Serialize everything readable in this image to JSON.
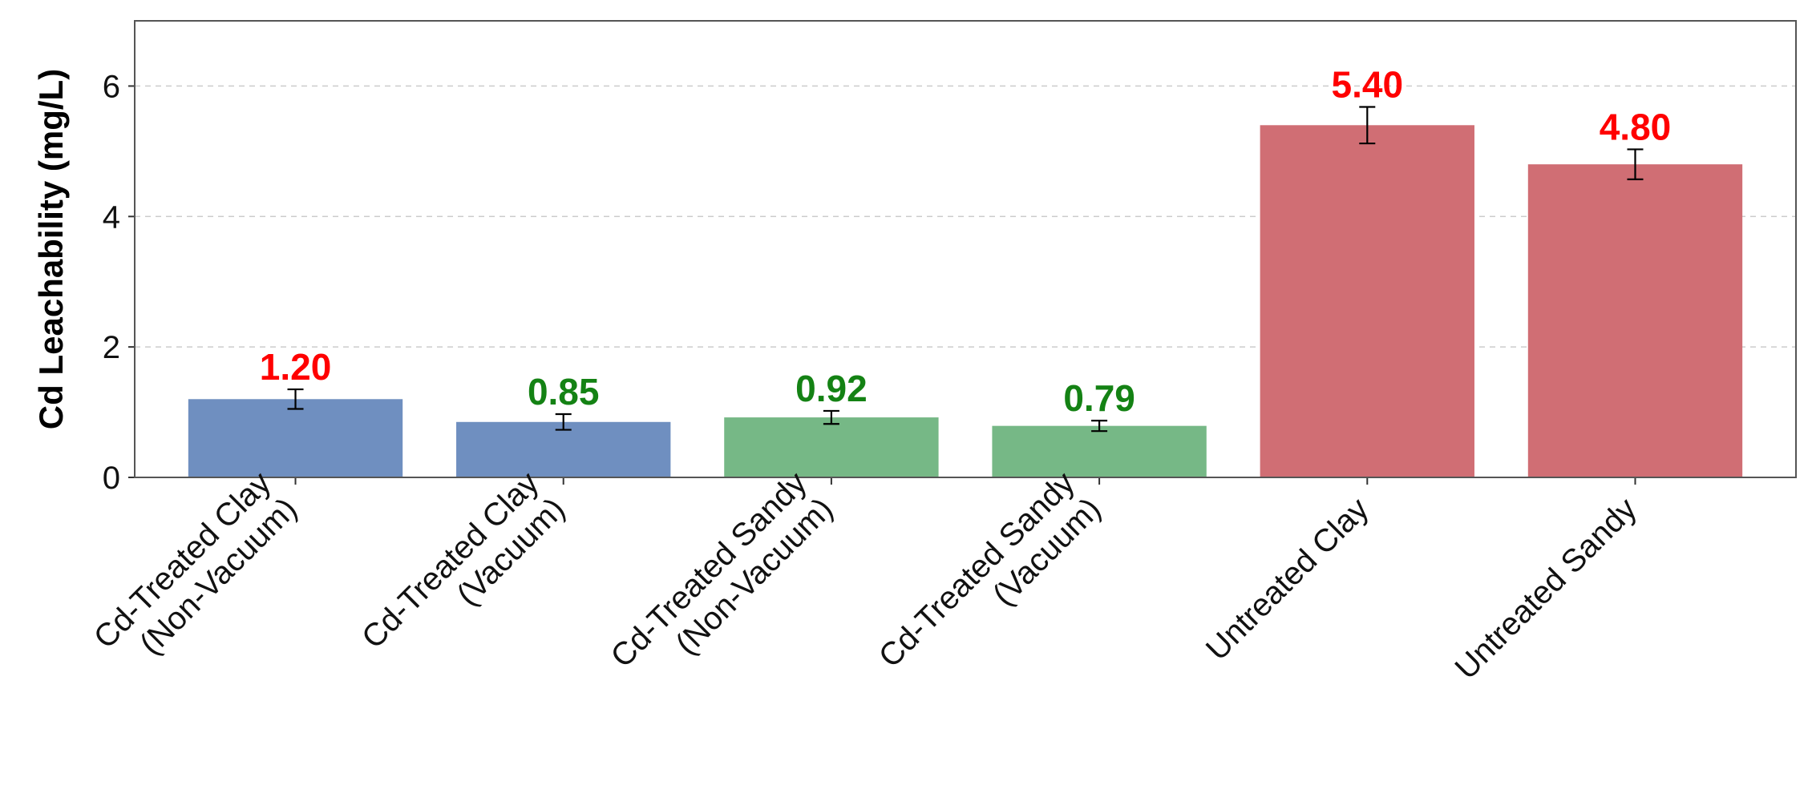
{
  "chart_data": {
    "type": "bar",
    "title": "",
    "xlabel": "",
    "ylabel": "Cd Leachability (mg/L)",
    "ylim": [
      0,
      7
    ],
    "yticks": [
      0,
      2,
      4,
      6
    ],
    "grid": "y-dashed",
    "categories": [
      [
        "Cd-Treated Clay",
        "(Non-Vacuum)"
      ],
      [
        "Cd-Treated Clay",
        "(Vacuum)"
      ],
      [
        "Cd-Treated Sandy",
        "(Non-Vacuum)"
      ],
      [
        "Cd-Treated Sandy",
        "(Vacuum)"
      ],
      [
        "Untreated Clay"
      ],
      [
        "Untreated Sandy"
      ]
    ],
    "values": [
      1.2,
      0.85,
      0.92,
      0.79,
      5.4,
      4.8
    ],
    "errors": [
      0.15,
      0.12,
      0.1,
      0.08,
      0.28,
      0.23
    ],
    "value_labels": [
      "1.20",
      "0.85",
      "0.92",
      "0.79",
      "5.40",
      "4.80"
    ],
    "bar_colors": [
      "#6f8fc0",
      "#6f8fc0",
      "#76b886",
      "#76b886",
      "#d06e74",
      "#d06e74"
    ],
    "value_label_colors": [
      "#ff0000",
      "#148214",
      "#148214",
      "#148214",
      "#ff0000",
      "#ff0000"
    ]
  }
}
